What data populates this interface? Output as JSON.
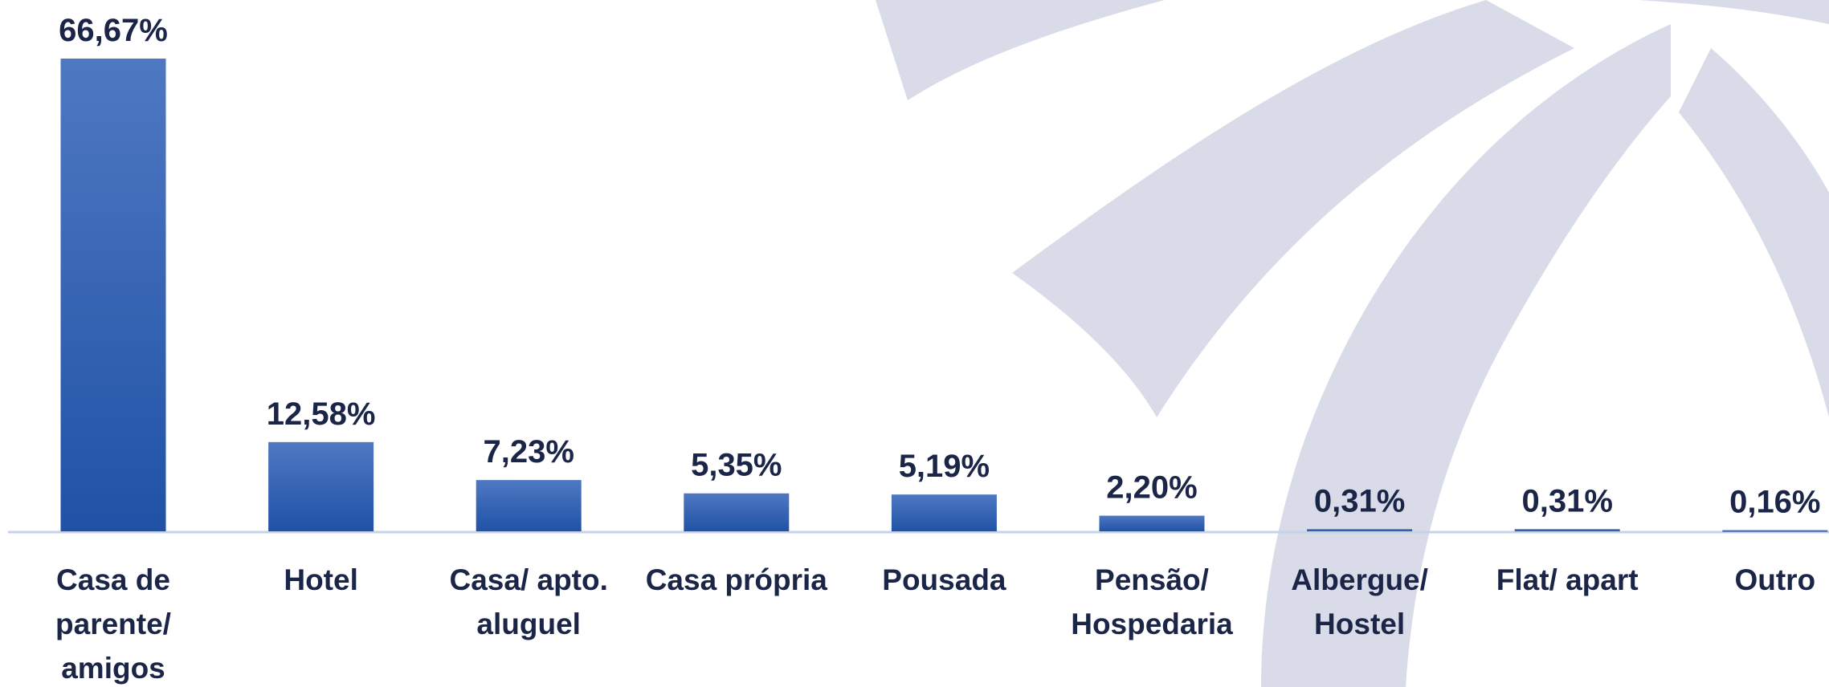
{
  "chart_data": {
    "type": "bar",
    "categories": [
      "Casa de parente/ amigos",
      "Hotel",
      "Casa/ apto. aluguel",
      "Casa própria",
      "Pousada",
      "Pensão/ Hospedaria",
      "Albergue/ Hostel",
      "Flat/ apart",
      "Outro"
    ],
    "values": [
      66.67,
      12.58,
      7.23,
      5.35,
      5.19,
      2.2,
      0.31,
      0.31,
      0.16
    ],
    "value_labels": [
      "66,67%",
      "12,58%",
      "7,23%",
      "5,35%",
      "5,19%",
      "2,20%",
      "0,31%",
      "0,31%",
      "0,16%"
    ],
    "color": "#2a5db0",
    "ylim": [
      0,
      66.67
    ]
  }
}
